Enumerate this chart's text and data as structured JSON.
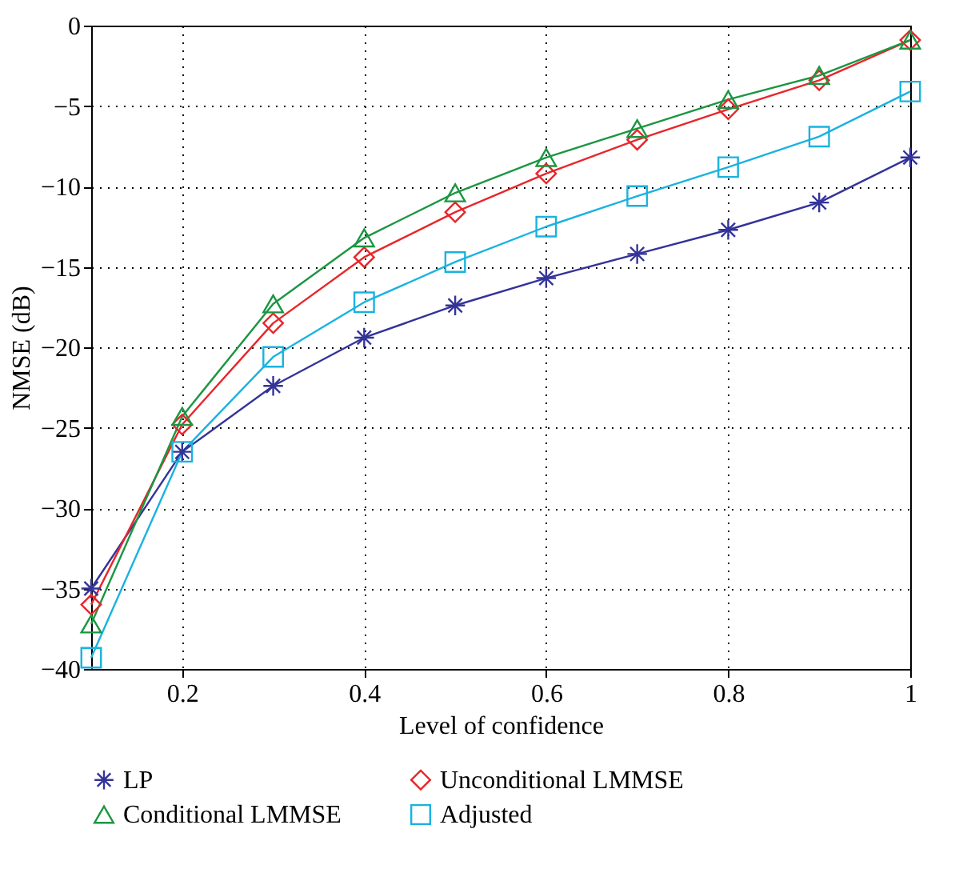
{
  "chart_data": {
    "type": "line",
    "xlabel": "Level of confidence",
    "ylabel": "NMSE (dB)",
    "x": [
      0.1,
      0.2,
      0.3,
      0.4,
      0.5,
      0.6,
      0.7,
      0.8,
      0.9,
      1
    ],
    "xlim": [
      0.1,
      1
    ],
    "xticks": [
      0.2,
      0.4,
      0.6,
      0.8,
      1
    ],
    "ylim": [
      -40,
      0
    ],
    "yticks": [
      -40,
      -35,
      -30,
      -25,
      -20,
      -15,
      -10,
      -5,
      0
    ],
    "grid": true,
    "legend": "bottom",
    "line_style": "solid",
    "series": [
      {
        "name": "LP",
        "color": "#333399",
        "marker": "cross",
        "values": [
          -35,
          -26.5,
          -22.4,
          -19.4,
          -17.4,
          -15.7,
          -14.2,
          -12.7,
          -11,
          -8.2
        ]
      },
      {
        "name": "Unconditional LMMSE",
        "color": "#e8262a",
        "marker": "diamond",
        "values": [
          -36,
          -24.8,
          -18.5,
          -14.4,
          -11.6,
          -9.2,
          -7.1,
          -5.2,
          -3.4,
          -0.9
        ]
      },
      {
        "name": "Conditional LMMSE",
        "color": "#1a9641",
        "marker": "triangle",
        "values": [
          -37.2,
          -24.3,
          -17.3,
          -13.2,
          -10.4,
          -8.2,
          -6.4,
          -4.6,
          -3.1,
          -0.9
        ]
      },
      {
        "name": "Adjusted",
        "color": "#1ab2e0",
        "marker": "square",
        "values": [
          -39.3,
          -26.5,
          -20.6,
          -17.2,
          -14.7,
          -12.5,
          -10.6,
          -8.8,
          -6.9,
          -4.1
        ]
      }
    ]
  }
}
